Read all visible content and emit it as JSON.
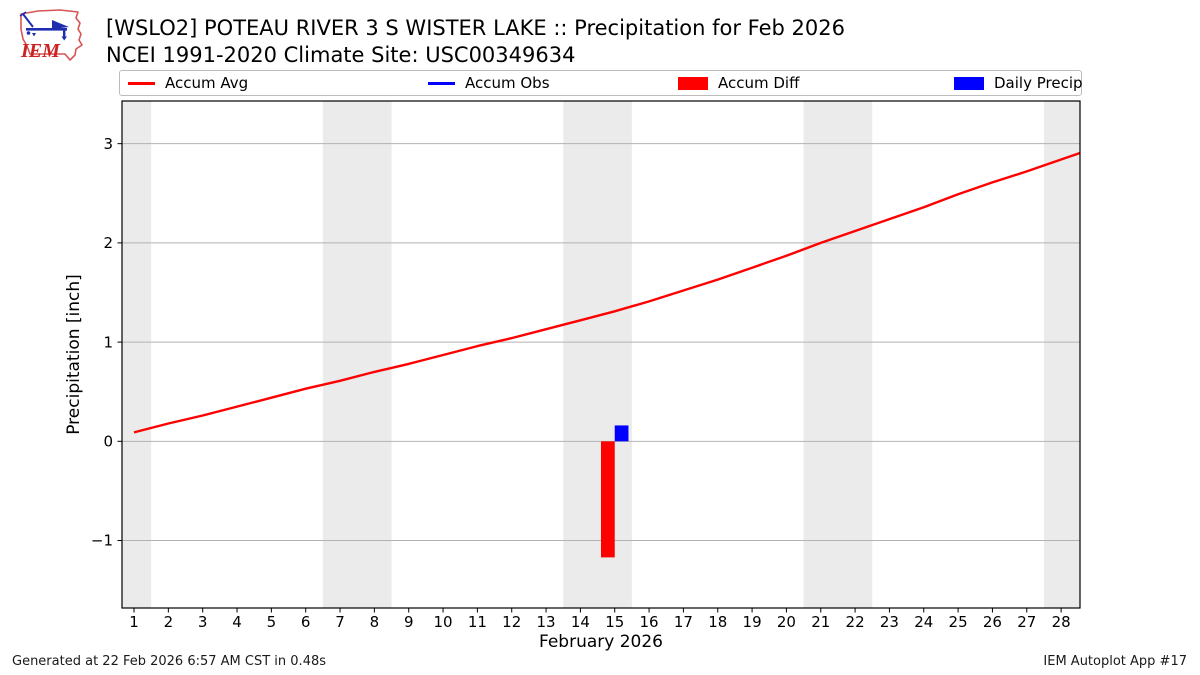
{
  "logo": {
    "text": "IEM"
  },
  "header": {
    "title": "[WSLO2] POTEAU RIVER 3 S WISTER LAKE :: Precipitation for Feb 2026",
    "subtitle": "NCEI 1991-2020 Climate Site: USC00349634"
  },
  "legend": {
    "items": [
      {
        "label": "Accum Avg",
        "sample": "line",
        "color": "#ff0000"
      },
      {
        "label": "Accum Obs",
        "sample": "line",
        "color": "#0000ff"
      },
      {
        "label": "Accum Diff",
        "sample": "patch",
        "color": "#ff0000"
      },
      {
        "label": "Daily Precip",
        "sample": "patch",
        "color": "#0000ff"
      }
    ]
  },
  "footer": {
    "generated": "Generated at 22 Feb 2026 6:57 AM CST in 0.48s",
    "credit": "IEM Autoplot App #17"
  },
  "chart_data": {
    "type": "line+bar",
    "title": "[WSLO2] POTEAU RIVER 3 S WISTER LAKE :: Precipitation for Feb 2026",
    "subtitle": "NCEI 1991-2020 Climate Site: USC00349634",
    "xlabel": "February 2026",
    "ylabel": "Precipitation [inch]",
    "xlim": [
      0.65,
      28.55
    ],
    "ylim": [
      -1.68,
      3.43
    ],
    "xticks": [
      1,
      2,
      3,
      4,
      5,
      6,
      7,
      8,
      9,
      10,
      11,
      12,
      13,
      14,
      15,
      16,
      17,
      18,
      19,
      20,
      21,
      22,
      23,
      24,
      25,
      26,
      27,
      28
    ],
    "yticks": [
      -1,
      0,
      1,
      2,
      3
    ],
    "grid": "horizontal",
    "gridline_color": "#b2b2b2",
    "weekend_band_color": "#ebebeb",
    "weekend_bands": [
      [
        0.65,
        1.5
      ],
      [
        6.5,
        8.5
      ],
      [
        13.5,
        15.5
      ],
      [
        20.5,
        22.5
      ],
      [
        27.5,
        28.55
      ]
    ],
    "series": [
      {
        "name": "Accum Avg",
        "type": "line",
        "color": "#ff0000",
        "x": [
          1,
          2,
          3,
          4,
          5,
          6,
          7,
          8,
          9,
          10,
          11,
          12,
          13,
          14,
          15,
          16,
          17,
          18,
          19,
          20,
          21,
          22,
          23,
          24,
          25,
          26,
          27,
          28
        ],
        "values": [
          0.09,
          0.18,
          0.26,
          0.35,
          0.44,
          0.53,
          0.61,
          0.7,
          0.78,
          0.87,
          0.96,
          1.04,
          1.13,
          1.22,
          1.31,
          1.41,
          1.52,
          1.63,
          1.75,
          1.87,
          2.0,
          2.12,
          2.24,
          2.36,
          2.49,
          2.61,
          2.72,
          2.84
        ],
        "extend_to_xmax": true
      },
      {
        "name": "Accum Obs",
        "type": "line",
        "color": "#0000ff",
        "x": [],
        "values": [],
        "note": "legend entry present but no line visible in plot"
      },
      {
        "name": "Accum Diff",
        "type": "bar",
        "color": "#ff0000",
        "x": [
          15
        ],
        "values": [
          -1.17
        ],
        "bar_offset": -0.2,
        "bar_width": 0.4
      },
      {
        "name": "Daily Precip",
        "type": "bar",
        "color": "#0000ff",
        "x": [
          15
        ],
        "values": [
          0.16
        ],
        "bar_offset": 0.2,
        "bar_width": 0.4
      }
    ]
  }
}
